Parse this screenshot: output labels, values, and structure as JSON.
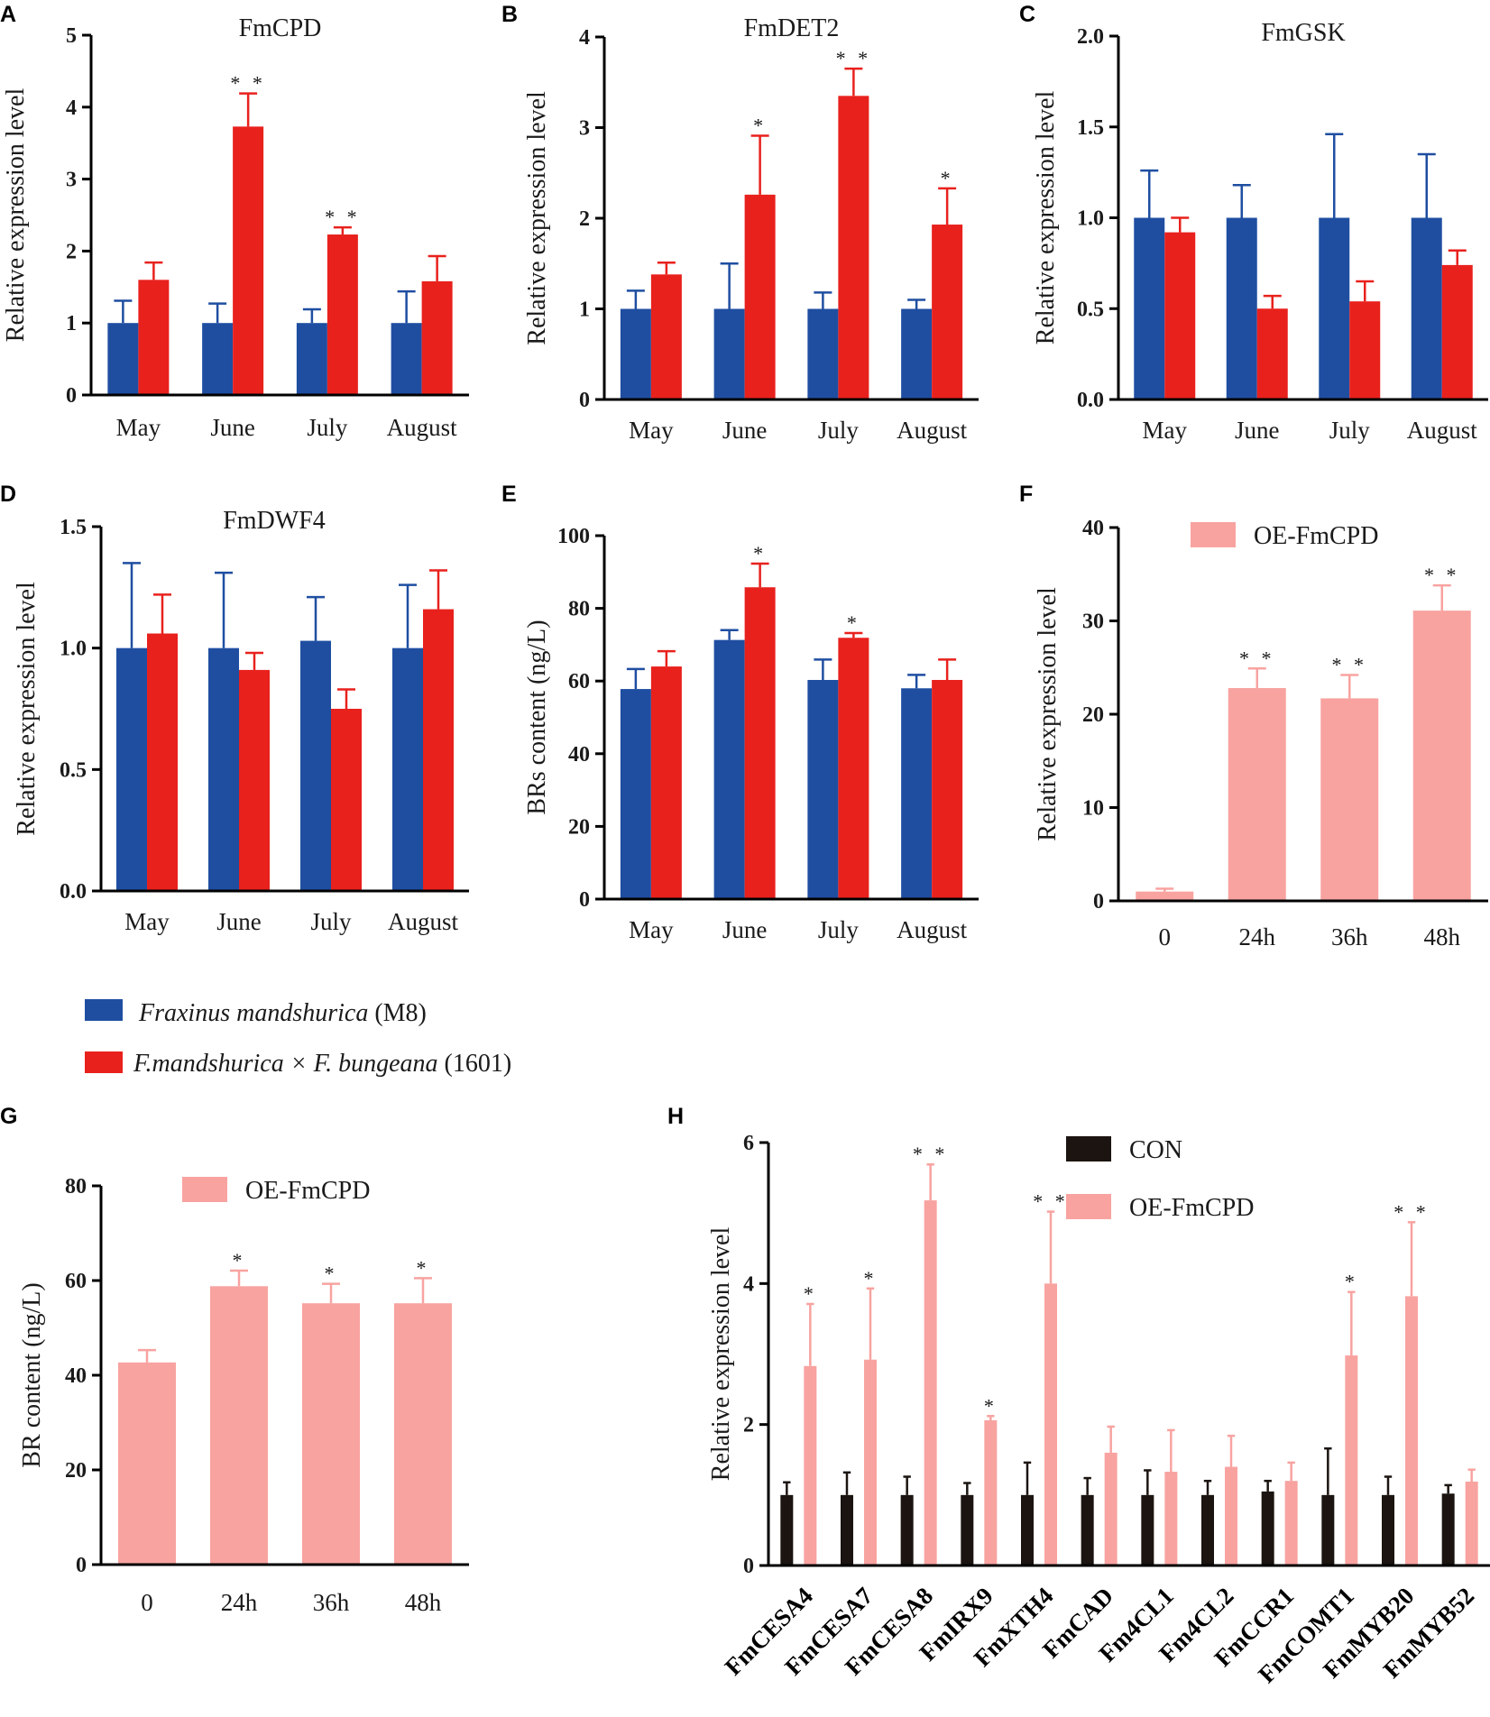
{
  "colors": {
    "m8": "#1f4ea1",
    "hybrid": "#e8211d",
    "oe": "#f8a3a0",
    "con": "#1b1410",
    "axis": "#000000"
  },
  "legend_main": {
    "m8_italic": "Fraxinus mandshurica",
    "m8_suffix": " (M8)",
    "hybrid_italic": "F.mandshurica × F. bungeana",
    "hybrid_suffix": " (1601)"
  },
  "chart_data": [
    {
      "panel": "A",
      "type": "bar",
      "title": "FmCPD",
      "ylabel": "Relative expression level",
      "ylim": [
        0,
        5
      ],
      "yticks": [
        "0",
        "1",
        "2",
        "3",
        "4",
        "5"
      ],
      "categories": [
        "May",
        "June",
        "July",
        "August"
      ],
      "series": [
        {
          "name": "Fraxinus mandshurica (M8)",
          "values": [
            1.0,
            1.0,
            1.0,
            1.0
          ],
          "errors": [
            0.31,
            0.27,
            0.19,
            0.44
          ]
        },
        {
          "name": "F.mandshurica × F. bungeana (1601)",
          "values": [
            1.6,
            3.73,
            2.23,
            1.58
          ],
          "errors": [
            0.24,
            0.46,
            0.1,
            0.35
          ]
        }
      ],
      "annotations": [
        "",
        "**",
        "**",
        ""
      ]
    },
    {
      "panel": "B",
      "type": "bar",
      "title": "FmDET2",
      "ylabel": "Relative expression level",
      "ylim": [
        0,
        4
      ],
      "yticks": [
        "0",
        "1",
        "2",
        "3",
        "4"
      ],
      "categories": [
        "May",
        "June",
        "July",
        "August"
      ],
      "series": [
        {
          "name": "Fraxinus mandshurica (M8)",
          "values": [
            1.0,
            1.0,
            1.0,
            1.0
          ],
          "errors": [
            0.2,
            0.5,
            0.18,
            0.1
          ]
        },
        {
          "name": "F.mandshurica × F. bungeana (1601)",
          "values": [
            1.38,
            2.26,
            3.35,
            1.93
          ],
          "errors": [
            0.13,
            0.65,
            0.3,
            0.4
          ]
        }
      ],
      "annotations": [
        "",
        "*",
        "**",
        "*"
      ]
    },
    {
      "panel": "C",
      "type": "bar",
      "title": "FmGSK",
      "ylabel": "Relative expression level",
      "ylim": [
        0,
        2
      ],
      "yticks": [
        "0.0",
        "0.5",
        "1.0",
        "1.5",
        "2.0"
      ],
      "categories": [
        "May",
        "June",
        "July",
        "August"
      ],
      "series": [
        {
          "name": "Fraxinus mandshurica (M8)",
          "values": [
            1.0,
            1.0,
            1.0,
            1.0
          ],
          "errors": [
            0.26,
            0.18,
            0.46,
            0.35
          ]
        },
        {
          "name": "F.mandshurica × F. bungeana (1601)",
          "values": [
            0.92,
            0.5,
            0.54,
            0.74
          ],
          "errors": [
            0.08,
            0.07,
            0.11,
            0.08
          ]
        }
      ],
      "annotations": [
        "",
        "",
        "",
        ""
      ]
    },
    {
      "panel": "D",
      "type": "bar",
      "title": "FmDWF4",
      "ylabel": "Relative expression level",
      "ylim": [
        0,
        1.5
      ],
      "yticks": [
        "0.0",
        "0.5",
        "1.0",
        "1.5"
      ],
      "categories": [
        "May",
        "June",
        "July",
        "August"
      ],
      "series": [
        {
          "name": "Fraxinus mandshurica (M8)",
          "values": [
            1.0,
            1.0,
            1.03,
            1.0
          ],
          "errors": [
            0.35,
            0.31,
            0.18,
            0.26
          ]
        },
        {
          "name": "F.mandshurica × F. bungeana (1601)",
          "values": [
            1.06,
            0.91,
            0.75,
            1.16
          ],
          "errors": [
            0.16,
            0.07,
            0.08,
            0.16
          ]
        }
      ],
      "annotations": [
        "",
        "",
        "",
        ""
      ]
    },
    {
      "panel": "E",
      "type": "bar",
      "title": "",
      "ylabel": "BRs content (ng/L)",
      "ylim": [
        0,
        100
      ],
      "yticks": [
        "0",
        "20",
        "40",
        "60",
        "80",
        "100"
      ],
      "categories": [
        "May",
        "June",
        "July",
        "August"
      ],
      "series": [
        {
          "name": "Fraxinus mandshurica (M8)",
          "values": [
            57.8,
            71.3,
            60.3,
            58.0
          ],
          "errors": [
            5.5,
            2.7,
            5.6,
            3.7
          ]
        },
        {
          "name": "F.mandshurica × F. bungeana (1601)",
          "values": [
            64.0,
            85.8,
            71.9,
            60.3
          ],
          "errors": [
            4.2,
            6.5,
            1.3,
            5.6
          ]
        }
      ],
      "annotations": [
        "",
        "*",
        "*",
        ""
      ]
    },
    {
      "panel": "F",
      "type": "bar",
      "title": "",
      "ylabel": "Relative expression level",
      "ylim": [
        0,
        40
      ],
      "yticks": [
        "0",
        "10",
        "20",
        "30",
        "40"
      ],
      "categories": [
        "0",
        "24h",
        "36h",
        "48h"
      ],
      "legend": [
        "OE-FmCPD"
      ],
      "series": [
        {
          "name": "OE-FmCPD",
          "values": [
            1.0,
            22.8,
            21.7,
            31.1
          ],
          "errors": [
            0.3,
            2.1,
            2.5,
            2.7
          ]
        }
      ],
      "annotations": [
        "",
        "**",
        "**",
        "**"
      ]
    },
    {
      "panel": "G",
      "type": "bar",
      "title": "",
      "ylabel": "BR content (ng/L)",
      "ylim": [
        0,
        80
      ],
      "yticks": [
        "0",
        "20",
        "40",
        "60",
        "80"
      ],
      "categories": [
        "0",
        "24h",
        "36h",
        "48h"
      ],
      "legend": [
        "OE-FmCPD"
      ],
      "series": [
        {
          "name": "OE-FmCPD",
          "values": [
            42.7,
            58.8,
            55.2,
            55.2
          ],
          "errors": [
            2.6,
            3.3,
            4.1,
            5.3
          ]
        }
      ],
      "annotations": [
        "",
        "*",
        "*",
        "*"
      ]
    },
    {
      "panel": "H",
      "type": "bar",
      "title": "",
      "ylabel": "Relative expression level",
      "ylim": [
        0,
        6
      ],
      "yticks": [
        "0",
        "2",
        "4",
        "6"
      ],
      "categories": [
        "FmCESA4",
        "FmCESA7",
        "FmCESA8",
        "FmIRX9",
        "FmXTH4",
        "FmCAD",
        "Fm4CL1",
        "Fm4CL2",
        "FmCCR1",
        "FmCOMT1",
        "FmMYB20",
        "FmMYB52"
      ],
      "legend": [
        "CON",
        "OE-FmCPD"
      ],
      "series": [
        {
          "name": "CON",
          "values": [
            1.0,
            1.0,
            1.0,
            1.0,
            1.0,
            1.0,
            1.0,
            1.0,
            1.05,
            1.0,
            1.0,
            1.02
          ],
          "errors": [
            0.18,
            0.32,
            0.26,
            0.17,
            0.46,
            0.24,
            0.35,
            0.2,
            0.15,
            0.66,
            0.26,
            0.12
          ]
        },
        {
          "name": "OE-FmCPD",
          "values": [
            2.83,
            2.92,
            5.18,
            2.06,
            4.0,
            1.6,
            1.33,
            1.4,
            1.2,
            2.98,
            3.82,
            1.19
          ],
          "errors": [
            0.88,
            1.01,
            0.51,
            0.06,
            1.02,
            0.37,
            0.59,
            0.44,
            0.26,
            0.9,
            1.05,
            0.17
          ]
        }
      ],
      "annotations": [
        "*",
        "*",
        "**",
        "*",
        "**",
        "",
        "",
        "",
        "",
        "*",
        "**",
        ""
      ]
    }
  ]
}
